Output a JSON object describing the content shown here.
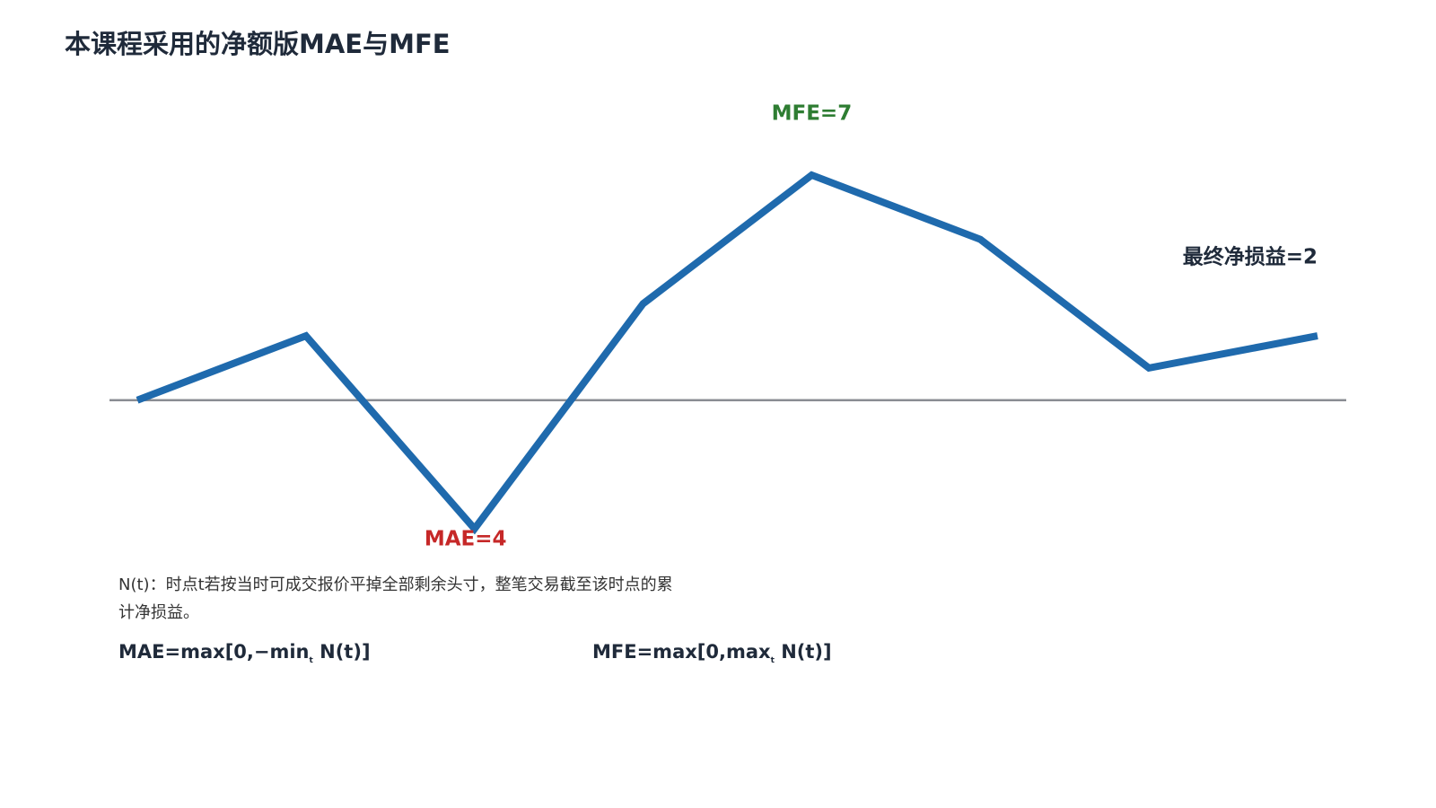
{
  "chart_data": {
    "type": "line",
    "title": "本课程采用的净额版MAE与MFE",
    "values": [
      0,
      2,
      -4,
      3,
      7,
      5,
      1,
      2
    ],
    "color": "#1f6aad",
    "annotations": [
      {
        "text": "MFE=7",
        "color": "#2e7d32"
      },
      {
        "text": "MAE=4",
        "color": "#c62828"
      },
      {
        "text": "最终净损益=2",
        "color": "#1f2a3a"
      }
    ],
    "note": "N(t)：时点t若按当时可成交报价平掉全部剩余头寸，整笔交易截至该时点的累计净损益。",
    "formulas": [
      {
        "main": "MAE=max[0,−min",
        "sub": "t",
        "rest": " N(t)]"
      },
      {
        "main": "MFE=max[0,max",
        "sub": "t",
        "rest": " N(t)]"
      }
    ]
  }
}
